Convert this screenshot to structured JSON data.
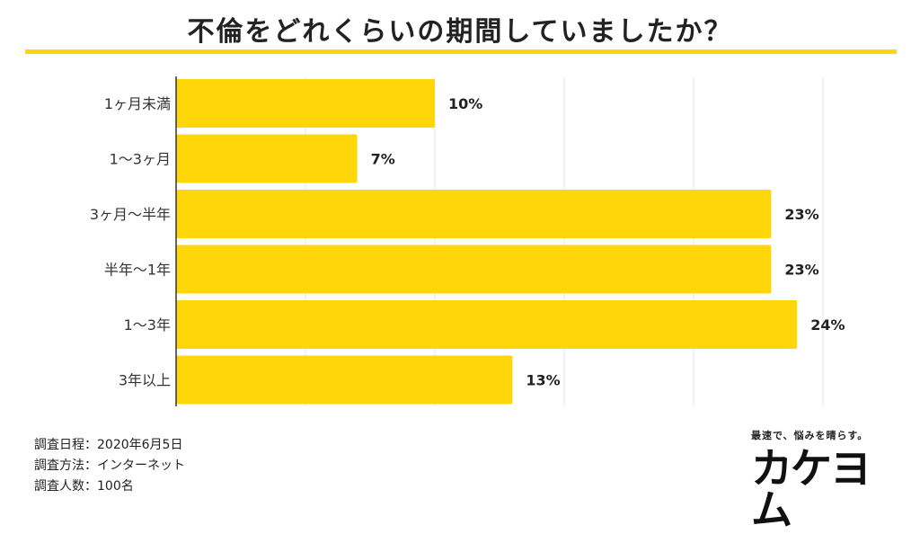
{
  "title": "不倫をどれくらいの期間していましたか？",
  "chart_data": {
    "type": "bar",
    "orientation": "horizontal",
    "categories": [
      "1ヶ月未満",
      "1〜3ヶ月",
      "3ヶ月〜半年",
      "半年〜1年",
      "1〜3年",
      "3年以上"
    ],
    "values": [
      10,
      7,
      23,
      23,
      24,
      13
    ],
    "value_labels": [
      "10%",
      "7%",
      "23%",
      "23%",
      "24%",
      "13%"
    ],
    "unit": "%",
    "xlim": [
      0,
      25
    ],
    "grid": true,
    "bar_color": "#FFD60A"
  },
  "notes": {
    "date": "調査日程：2020年6月5日",
    "method": "調査方法：インターネット",
    "count": "調査人数：100名"
  },
  "brand": {
    "tagline": "最速で、悩みを晴らす。",
    "logo": "カケヨム"
  }
}
